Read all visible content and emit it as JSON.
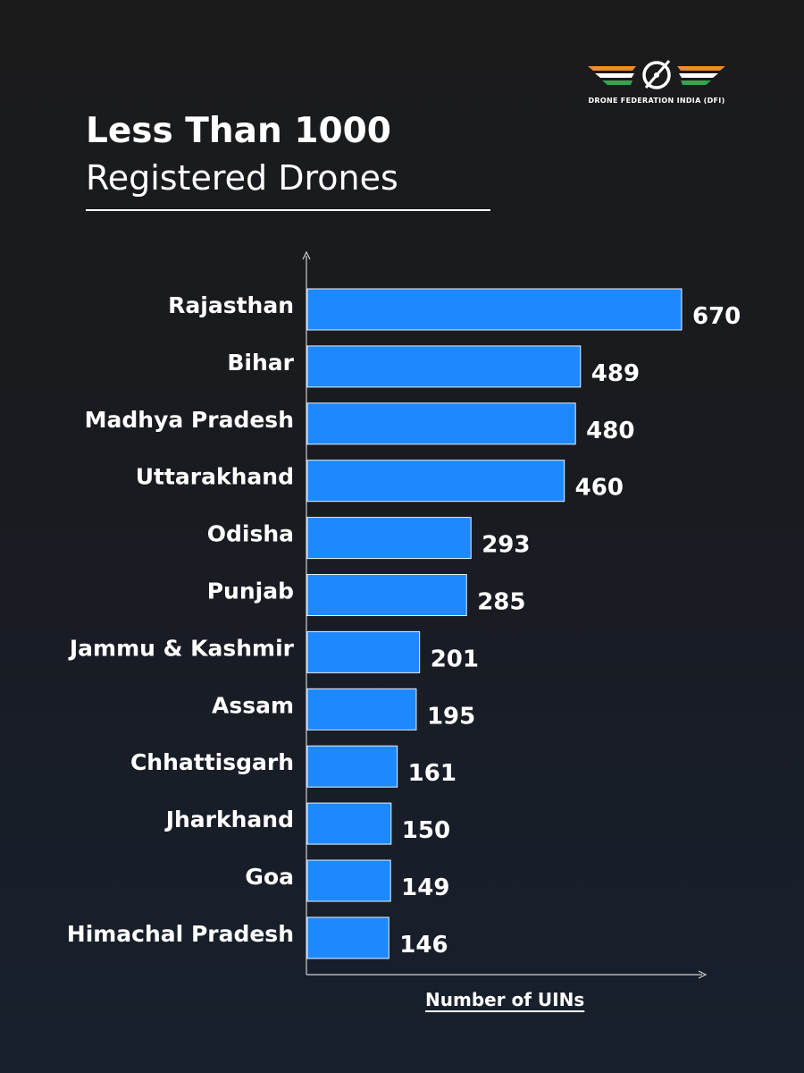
{
  "logo": {
    "text": "DRONE FEDERATION INDIA (DFI)",
    "colors": {
      "saffron": "#f58a2a",
      "white": "#ffffff",
      "green": "#2fa84f"
    }
  },
  "title": {
    "line1": "Less Than 1000",
    "line2": "Registered Drones"
  },
  "chart_data": {
    "type": "bar",
    "orientation": "horizontal",
    "title": "Less Than 1000 Registered Drones",
    "xlabel": "Number of UINs",
    "ylabel": "",
    "xlim": [
      0,
      1000
    ],
    "grid": false,
    "legend": "none",
    "bar_color": "#1e88ff",
    "categories": [
      "Rajasthan",
      "Bihar",
      "Madhya Pradesh",
      "Uttarakhand",
      "Odisha",
      "Punjab",
      "Jammu & Kashmir",
      "Assam",
      "Chhattisgarh",
      "Jharkhand",
      "Goa",
      "Himachal Pradesh"
    ],
    "values": [
      670,
      489,
      480,
      460,
      293,
      285,
      201,
      195,
      161,
      150,
      149,
      146
    ],
    "value_labels": [
      "670",
      "489",
      "480",
      "460",
      "293",
      "285",
      "201",
      "195",
      "161",
      "150",
      "149",
      "146"
    ]
  }
}
